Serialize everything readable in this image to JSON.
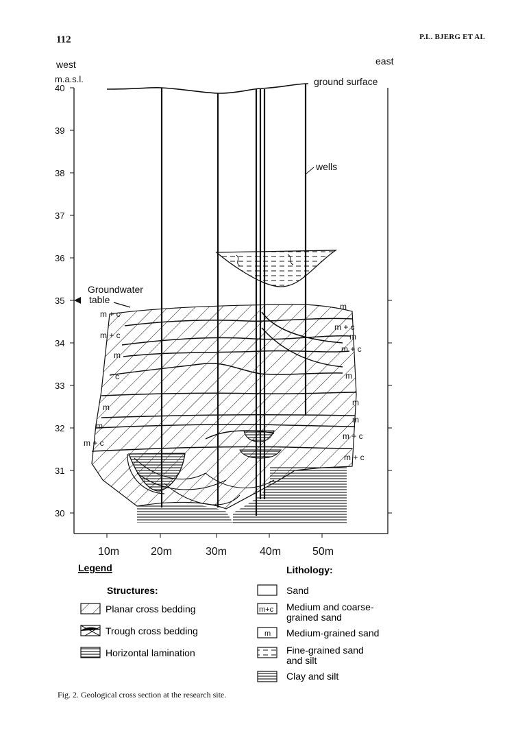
{
  "header": {
    "page_number": "112",
    "running_head": "P.L. BJERG ET AL"
  },
  "figure": {
    "direction_left": "west",
    "direction_right": "east",
    "y_axis_label": "m.a.s.l.",
    "y_ticks": [
      "40",
      "39",
      "38",
      "37",
      "36",
      "35",
      "34",
      "33",
      "32",
      "31",
      "30"
    ],
    "x_ticks": [
      "10m",
      "20m",
      "30m",
      "40m",
      "50m"
    ],
    "annotations": {
      "ground_surface": "ground surface",
      "wells": "wells",
      "groundwater_line1": "Groundwater",
      "groundwater_line2": "table"
    },
    "left_codes": [
      "m + c",
      "m + c",
      "m",
      "c",
      "m",
      "m",
      "m + c"
    ],
    "right_codes": [
      "m",
      "m + c",
      "m",
      "m + c",
      "m",
      "m",
      "m",
      "m + c",
      "m + c"
    ]
  },
  "legend": {
    "title": "Legend",
    "structures_title": "Structures:",
    "structures": [
      "Planar cross bedding",
      "Trough cross bedding",
      "Horizontal lamination"
    ],
    "lithology_title": "Lithology:",
    "lithology": [
      {
        "box": "",
        "line1": "Sand",
        "line2": ""
      },
      {
        "box": "m+c",
        "line1": "Medium and coarse-",
        "line2": "grained sand"
      },
      {
        "box": "m",
        "line1": "Medium-grained sand",
        "line2": ""
      },
      {
        "box": "",
        "line1": "Fine-grained sand",
        "line2": "and silt"
      },
      {
        "box": "",
        "line1": "Clay and silt",
        "line2": ""
      }
    ]
  },
  "caption": "Fig. 2. Geological cross section at the research site."
}
